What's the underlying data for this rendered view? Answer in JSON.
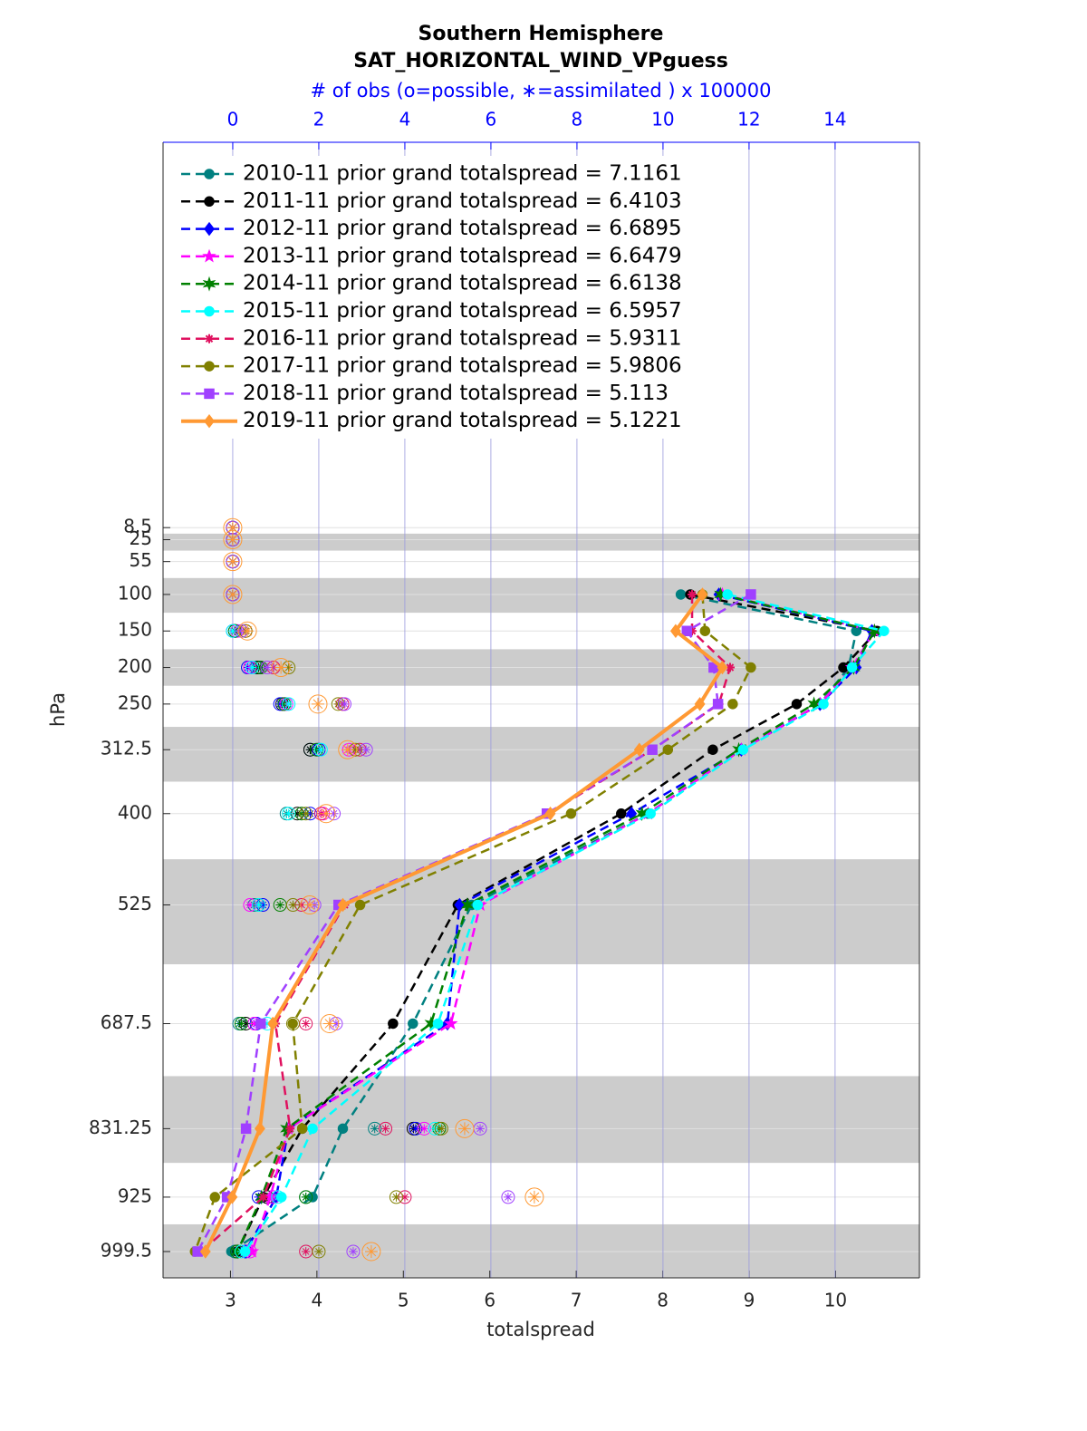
{
  "chart_data": {
    "type": "line",
    "title": "Southern Hemisphere",
    "subtitle": "SAT_HORIZONTAL_WIND_VPguess",
    "x2_label": "# of obs (o=possible, ∗=assimilated ) x 100000",
    "x_label": "totalspread",
    "y_label": "hPa",
    "y": [
      8.5,
      25,
      55,
      100,
      150,
      200,
      250,
      312.5,
      400,
      525,
      687.5,
      831.25,
      925,
      999.5
    ],
    "ylim": [
      1035.5,
      -519
    ],
    "yticks": [
      8.5,
      25,
      55,
      100,
      150,
      200,
      250,
      312.5,
      400,
      525,
      687.5,
      831.25,
      925,
      999.5
    ],
    "xlim": [
      2.22,
      10.97
    ],
    "xticks": [
      3,
      4,
      5,
      6,
      7,
      8,
      9,
      10
    ],
    "x2lim": [
      -1.62,
      15.96
    ],
    "x2ticks": [
      0,
      2,
      4,
      6,
      8,
      10,
      12,
      14
    ],
    "grid": true,
    "legend": "upper left",
    "series": [
      {
        "name": "2010-11 prior grand totalspread = 7.1161",
        "color": "#008080",
        "marker": "circle",
        "dashed": true,
        "values": [
          null,
          null,
          null,
          8.21,
          10.24,
          10.15,
          9.82,
          8.91,
          7.83,
          5.79,
          5.11,
          4.3,
          3.95,
          3.01
        ],
        "obs_count": [
          0,
          0,
          0,
          0,
          0.05,
          0.55,
          1.2,
          1.8,
          1.25,
          0.5,
          0.15,
          3.3,
          1.7,
          0.05
        ]
      },
      {
        "name": "2011-11 prior grand totalspread = 6.4103",
        "color": "#000000",
        "marker": "circle",
        "dashed": true,
        "values": [
          null,
          null,
          null,
          8.32,
          10.48,
          10.09,
          9.55,
          8.58,
          7.52,
          5.63,
          4.88,
          3.83,
          3.38,
          3.08
        ],
        "obs_count": [
          0,
          0,
          0,
          0,
          0.05,
          0.6,
          1.15,
          1.8,
          1.5,
          0.6,
          0.3,
          4.2,
          0.8,
          0.1
        ]
      },
      {
        "name": "2012-11 prior grand totalspread = 6.6895",
        "color": "#0000ff",
        "marker": "diamond",
        "dashed": true,
        "values": [
          null,
          null,
          null,
          8.65,
          10.42,
          10.24,
          9.82,
          8.91,
          7.64,
          5.65,
          5.51,
          3.67,
          3.53,
          3.17
        ],
        "obs_count": [
          0,
          0,
          0,
          0,
          0,
          0.35,
          1.1,
          2.0,
          1.8,
          0.7,
          0.55,
          4.25,
          0.6,
          0.3
        ]
      },
      {
        "name": "2013-11 prior grand totalspread = 6.6479",
        "color": "#ff00ff",
        "marker": "star",
        "dashed": true,
        "values": [
          null,
          null,
          null,
          8.69,
          10.45,
          10.19,
          9.82,
          8.91,
          7.83,
          5.89,
          5.55,
          3.67,
          3.46,
          3.25
        ],
        "obs_count": [
          0,
          0,
          0,
          0,
          0.1,
          0.4,
          1.25,
          2.7,
          2.1,
          0.4,
          0.5,
          4.45,
          0.95,
          0.4
        ]
      },
      {
        "name": "2014-11 prior grand totalspread = 6.6138",
        "color": "#008000",
        "marker": "hexagram",
        "dashed": true,
        "values": [
          null,
          null,
          null,
          8.67,
          10.45,
          10.21,
          9.75,
          8.88,
          7.76,
          5.74,
          5.32,
          3.65,
          3.36,
          3.08
        ],
        "obs_count": [
          0,
          0,
          0,
          0,
          0.05,
          0.65,
          1.2,
          1.95,
          1.6,
          1.1,
          0.2,
          4.8,
          1.7,
          0.1
        ]
      },
      {
        "name": "2015-11 prior grand totalspread = 6.5957",
        "color": "#00ffff",
        "marker": "circle",
        "dashed": true,
        "values": [
          null,
          null,
          null,
          8.75,
          10.56,
          10.19,
          9.86,
          8.93,
          7.86,
          5.86,
          5.4,
          3.95,
          3.59,
          3.17
        ],
        "obs_count": [
          0,
          0,
          0,
          0,
          0,
          0.45,
          1.3,
          2.05,
          1.3,
          0.6,
          0.8,
          4.7,
          1.05,
          0.2
        ]
      },
      {
        "name": "2016-11 prior grand totalspread = 5.9311",
        "color": "#e0115f",
        "marker": "asterisk",
        "dashed": true,
        "values": [
          null,
          null,
          null,
          8.34,
          8.34,
          8.78,
          8.65,
          7.88,
          6.68,
          4.32,
          3.52,
          3.69,
          3.38,
          2.66
        ],
        "obs_count": [
          0,
          0,
          0,
          0,
          0.3,
          0.95,
          2.55,
          2.95,
          2.05,
          1.6,
          1.7,
          3.55,
          4.0,
          1.7
        ]
      },
      {
        "name": "2017-11 prior grand totalspread = 5.9806",
        "color": "#808000",
        "marker": "circle",
        "dashed": true,
        "values": [
          null,
          null,
          null,
          8.46,
          8.49,
          9.02,
          8.81,
          8.06,
          6.94,
          4.5,
          3.72,
          3.83,
          2.82,
          2.59
        ],
        "obs_count": [
          0,
          0,
          0,
          0,
          0.3,
          1.3,
          2.45,
          2.85,
          1.7,
          1.4,
          1.4,
          4.85,
          3.8,
          2.0
        ]
      },
      {
        "name": "2018-11 prior grand totalspread = 5.113",
        "color": "#a040ff",
        "marker": "square",
        "dashed": true,
        "values": [
          null,
          null,
          null,
          9.02,
          8.28,
          8.59,
          8.64,
          7.88,
          6.66,
          4.25,
          3.35,
          3.18,
          2.96,
          2.62
        ],
        "obs_count": [
          0,
          0,
          0,
          0,
          0.2,
          0.8,
          2.6,
          3.1,
          2.35,
          1.9,
          2.4,
          5.75,
          6.4,
          2.8
        ]
      },
      {
        "name": "2019-11 prior grand totalspread = 5.1221",
        "color": "#ff9933",
        "marker": "diamond",
        "dashed": false,
        "values": [
          null,
          null,
          null,
          8.46,
          8.15,
          8.69,
          8.43,
          7.73,
          6.7,
          4.3,
          3.49,
          3.34,
          3.02,
          2.71
        ],
        "obs_count": [
          0,
          0,
          0,
          0,
          0.34,
          1.12,
          1.98,
          2.67,
          2.17,
          1.79,
          2.25,
          5.39,
          7.01,
          3.22
        ]
      }
    ]
  }
}
